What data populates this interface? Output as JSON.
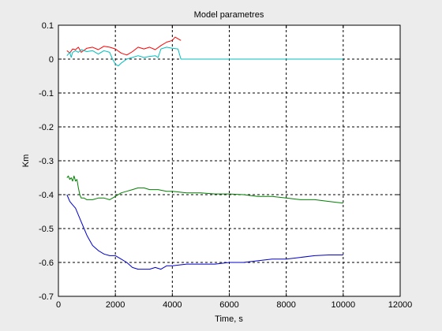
{
  "chart_data": {
    "type": "line",
    "title": "Model parametres",
    "xlabel": "Time, s",
    "ylabel": "Km",
    "xlim": [
      0,
      12000
    ],
    "ylim": [
      -0.7,
      0.1
    ],
    "xticks": [
      0,
      2000,
      4000,
      6000,
      8000,
      10000,
      12000
    ],
    "yticks": [
      -0.7,
      -0.6,
      -0.5,
      -0.4,
      -0.3,
      -0.2,
      -0.1,
      0,
      0.1
    ],
    "xtick_labels": [
      "0",
      "2000",
      "4000",
      "6000",
      "8000",
      "10000",
      "12000"
    ],
    "ytick_labels": [
      "-0.7",
      "-0.6",
      "-0.5",
      "-0.4",
      "-0.3",
      "-0.2",
      "-0.1",
      "0",
      "0.1"
    ],
    "grid": true,
    "grid_style": "dashed",
    "background_color": "#ececec",
    "axes_color": "#ffffff",
    "series": [
      {
        "color": "#ff0000",
        "x": [
          300,
          400,
          500,
          600,
          700,
          800,
          1000,
          1200,
          1400,
          1600,
          1800,
          2000,
          2200,
          2400,
          2600,
          2800,
          3000,
          3200,
          3400,
          3600,
          3800,
          4000,
          4100,
          4200,
          4300
        ],
        "y": [
          0.025,
          0.018,
          0.03,
          0.028,
          0.035,
          0.02,
          0.032,
          0.035,
          0.028,
          0.038,
          0.035,
          0.03,
          0.018,
          0.012,
          0.022,
          0.035,
          0.03,
          0.035,
          0.028,
          0.04,
          0.05,
          0.055,
          0.065,
          0.06,
          0.055
        ]
      },
      {
        "color": "#00bfbf",
        "x": [
          300,
          400,
          450,
          500,
          600,
          700,
          800,
          1000,
          1200,
          1400,
          1600,
          1800,
          1900,
          2000,
          2100,
          2200,
          2400,
          2600,
          2800,
          3000,
          3200,
          3400,
          3500,
          3600,
          3800,
          4000,
          4200,
          4300,
          4350,
          5000,
          6000,
          7000,
          8000,
          9000,
          10000
        ],
        "y": [
          0.01,
          0.02,
          0.005,
          0.02,
          0.025,
          0.02,
          0.028,
          0.022,
          0.025,
          0.015,
          0.025,
          0.02,
          0.0,
          -0.015,
          -0.02,
          -0.012,
          0.0,
          0.005,
          0.01,
          0.005,
          0.008,
          0.01,
          0.005,
          0.03,
          0.035,
          0.032,
          0.03,
          0.0,
          0.0,
          0.0,
          0.0,
          0.0,
          0.0,
          0.0,
          0.0
        ]
      },
      {
        "color": "#008000",
        "x": [
          300,
          350,
          400,
          450,
          500,
          550,
          600,
          650,
          700,
          750,
          800,
          900,
          1000,
          1200,
          1400,
          1600,
          1800,
          2000,
          2200,
          2400,
          2600,
          2800,
          3000,
          3200,
          3500,
          3800,
          4000,
          4500,
          5000,
          5500,
          6000,
          6500,
          7000,
          7500,
          8000,
          8500,
          9000,
          9500,
          10000
        ],
        "y": [
          -0.35,
          -0.345,
          -0.355,
          -0.35,
          -0.36,
          -0.345,
          -0.36,
          -0.355,
          -0.38,
          -0.4,
          -0.41,
          -0.41,
          -0.415,
          -0.415,
          -0.41,
          -0.41,
          -0.415,
          -0.405,
          -0.395,
          -0.39,
          -0.385,
          -0.38,
          -0.38,
          -0.385,
          -0.385,
          -0.39,
          -0.39,
          -0.395,
          -0.395,
          -0.398,
          -0.398,
          -0.4,
          -0.405,
          -0.405,
          -0.41,
          -0.415,
          -0.415,
          -0.42,
          -0.425
        ]
      },
      {
        "color": "#0000cc",
        "x": [
          300,
          400,
          500,
          600,
          700,
          800,
          900,
          1000,
          1100,
          1200,
          1400,
          1600,
          1800,
          2000,
          2200,
          2400,
          2600,
          2800,
          3000,
          3200,
          3400,
          3600,
          3800,
          4000,
          4500,
          5000,
          5500,
          6000,
          6500,
          7000,
          7500,
          8000,
          8500,
          9000,
          9500,
          10000
        ],
        "y": [
          -0.4,
          -0.42,
          -0.43,
          -0.44,
          -0.46,
          -0.48,
          -0.5,
          -0.52,
          -0.535,
          -0.55,
          -0.565,
          -0.575,
          -0.58,
          -0.58,
          -0.59,
          -0.6,
          -0.615,
          -0.62,
          -0.62,
          -0.62,
          -0.615,
          -0.62,
          -0.61,
          -0.61,
          -0.605,
          -0.605,
          -0.605,
          -0.6,
          -0.6,
          -0.595,
          -0.59,
          -0.59,
          -0.585,
          -0.58,
          -0.578,
          -0.578
        ]
      }
    ]
  }
}
